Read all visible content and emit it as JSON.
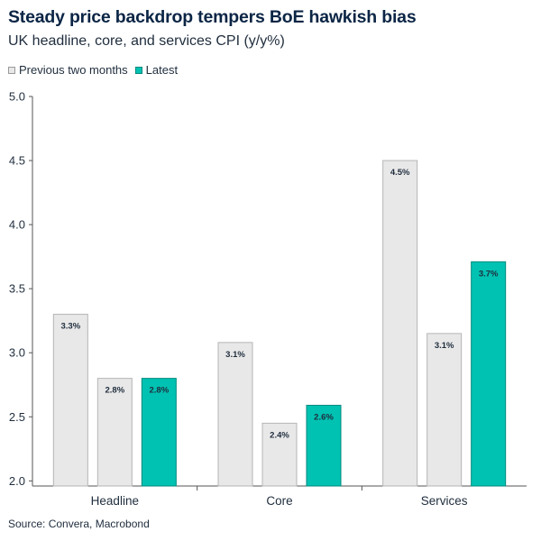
{
  "chart_data": {
    "type": "bar",
    "title": "Steady price backdrop tempers BoE hawkish bias",
    "subtitle": "UK headline, core, and services CPI (y/y%)",
    "source": "Source: Convera, Macrobond",
    "categories": [
      "Headline",
      "Core",
      "Services"
    ],
    "legend": {
      "placement": "top-left",
      "entries": [
        {
          "label": "Previous two months",
          "color": "#e8e8e8"
        },
        {
          "label": "Latest",
          "color": "#00c2b2"
        }
      ]
    },
    "groups": [
      {
        "category": "Headline",
        "bars": [
          {
            "value": 3.3,
            "label": "3.3%",
            "series": "Previous two months"
          },
          {
            "value": 2.8,
            "label": "2.8%",
            "series": "Previous two months"
          },
          {
            "value": 2.8,
            "label": "2.8%",
            "series": "Latest"
          }
        ]
      },
      {
        "category": "Core",
        "bars": [
          {
            "value": 3.08,
            "label": "3.1%",
            "series": "Previous two months"
          },
          {
            "value": 2.45,
            "label": "2.4%",
            "series": "Previous two months"
          },
          {
            "value": 2.59,
            "label": "2.6%",
            "series": "Latest"
          }
        ]
      },
      {
        "category": "Services",
        "bars": [
          {
            "value": 4.5,
            "label": "4.5%",
            "series": "Previous two months"
          },
          {
            "value": 3.15,
            "label": "3.1%",
            "series": "Previous two months"
          },
          {
            "value": 3.71,
            "label": "3.7%",
            "series": "Latest"
          }
        ]
      }
    ],
    "yticks": [
      "2.0",
      "2.5",
      "3.0",
      "3.5",
      "4.0",
      "4.5",
      "5.0"
    ],
    "ylim": [
      1.96,
      5.0
    ],
    "xlabel": "",
    "ylabel": "",
    "grid": false,
    "colors": {
      "previous": "#e8e8e8",
      "previous_border": "#b5b5b5",
      "latest": "#00c2b2",
      "latest_border": "#00897e",
      "axis": "#555555"
    }
  }
}
